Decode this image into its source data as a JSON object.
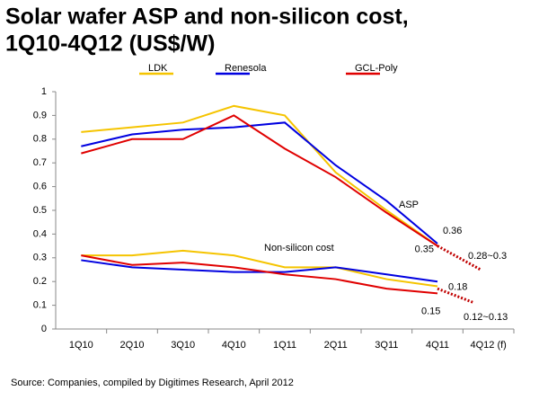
{
  "chart_data": {
    "type": "line",
    "title": "Solar wafer ASP and non-silicon cost, 1Q10-4Q12 (US$/W)",
    "categories": [
      "1Q10",
      "2Q10",
      "3Q10",
      "4Q10",
      "1Q11",
      "2Q11",
      "3Q11",
      "4Q11",
      "4Q12 (f)"
    ],
    "series": [
      {
        "name": "LDK",
        "color": "#f5c400",
        "asp": [
          0.83,
          0.85,
          0.87,
          0.94,
          0.9,
          0.66,
          0.5,
          0.35,
          null
        ],
        "non_silicon": [
          0.31,
          0.31,
          0.33,
          0.31,
          0.26,
          0.26,
          0.21,
          0.18,
          null
        ],
        "non_silicon_labels": [
          null,
          null,
          null,
          null,
          null,
          null,
          null,
          "0.18",
          null
        ]
      },
      {
        "name": "Renesola",
        "color": "#0000e0",
        "asp": [
          0.77,
          0.82,
          0.84,
          0.85,
          0.87,
          0.69,
          0.54,
          0.36,
          null
        ],
        "asp_labels": [
          null,
          null,
          null,
          null,
          null,
          null,
          null,
          "0.36",
          null
        ],
        "non_silicon": [
          0.29,
          0.26,
          0.25,
          0.24,
          0.24,
          0.26,
          0.23,
          0.2,
          null
        ]
      },
      {
        "name": "GCL-Poly",
        "color": "#e00000",
        "asp": [
          0.74,
          0.8,
          0.8,
          0.9,
          0.76,
          0.64,
          0.49,
          0.35,
          null
        ],
        "asp_labels": [
          null,
          null,
          null,
          null,
          null,
          null,
          null,
          "0.35",
          null
        ],
        "non_silicon": [
          0.31,
          0.27,
          0.28,
          0.26,
          0.23,
          0.21,
          0.17,
          0.15,
          null
        ],
        "non_silicon_labels": [
          null,
          null,
          null,
          null,
          null,
          null,
          null,
          "0.15",
          null
        ]
      }
    ],
    "annotations": [
      "ASP",
      "Non-silicon cost"
    ],
    "forecast": [
      {
        "label": "0.28~0.3",
        "from": 0.35,
        "to": 0.25,
        "color": "#c00000"
      },
      {
        "label": "0.12~0.13",
        "from": 0.17,
        "to": 0.11,
        "color": "#c00000"
      }
    ],
    "ylim": [
      0,
      1
    ],
    "yticks": [
      0,
      0.1,
      0.2,
      0.3,
      0.4,
      0.5,
      0.6,
      0.7,
      0.8,
      0.9,
      1
    ],
    "source": "Source: Companies, compiled by Digitimes Research, April 2012"
  }
}
